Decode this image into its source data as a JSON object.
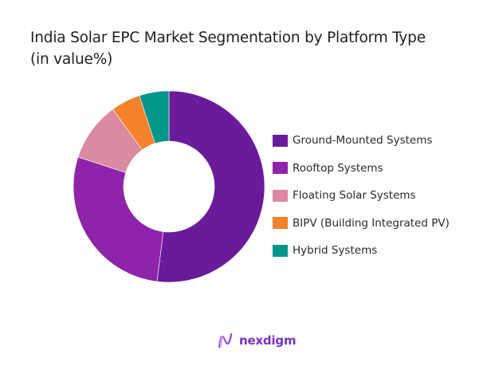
{
  "title": {
    "line1": "India Solar EPC Market Segmentation by Platform Type",
    "line2": "(in value%)"
  },
  "chart_data": {
    "type": "pie",
    "subtype": "donut",
    "title": "India Solar EPC Market Segmentation by Platform Type (in value%)",
    "categories": [
      "Ground-Mounted Systems",
      "Rooftop Systems",
      "Floating Solar Systems",
      "BIPV (Building Integrated PV)",
      "Hybrid Systems"
    ],
    "values": [
      52,
      28,
      10,
      5,
      5
    ],
    "colors": [
      "#6a1b9a",
      "#8e24aa",
      "#db8aa0",
      "#f5822a",
      "#00968a"
    ],
    "legend_position": "right",
    "start_angle": "12 o'clock, clockwise"
  },
  "legend": {
    "items": [
      {
        "label": "Ground-Mounted Systems",
        "color": "#6a1b9a"
      },
      {
        "label": "Rooftop Systems",
        "color": "#8e24aa"
      },
      {
        "label": "Floating Solar Systems",
        "color": "#db8aa0"
      },
      {
        "label": "BIPV (Building Integrated PV)",
        "color": "#f5822a"
      },
      {
        "label": "Hybrid Systems",
        "color": "#00968a"
      }
    ]
  },
  "branding": {
    "logo_text": "nexdigm",
    "logo_color": "#7b2fc9"
  }
}
